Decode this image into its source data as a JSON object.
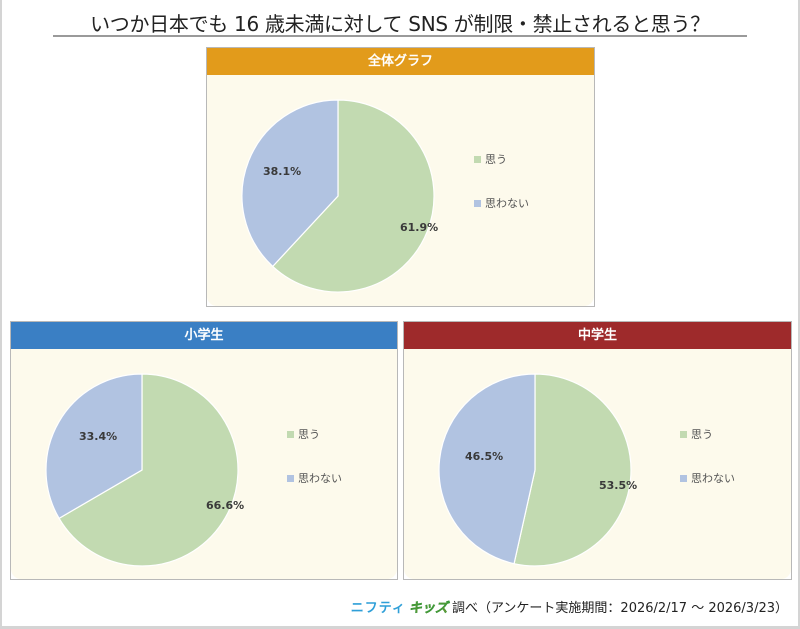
{
  "title": "いつか日本でも 16 歳未満に対して SNS が制限・禁止されると思う？",
  "colors": {
    "yes": "#c2dab1",
    "no": "#b1c3e1",
    "header_overall": "#e29b1b",
    "header_elementary": "#3a7fc4",
    "header_junior": "#9e2a2b",
    "panel_bg": "#fdfaec"
  },
  "legend": {
    "yes": "思う",
    "no": "思わない"
  },
  "panels": [
    {
      "id": "overall",
      "header": "全体グラフ",
      "yes_label": "61.9%",
      "no_label": "38.1%"
    },
    {
      "id": "elementary",
      "header": "小学生",
      "yes_label": "66.6%",
      "no_label": "33.4%"
    },
    {
      "id": "junior",
      "header": "中学生",
      "yes_label": "53.5%",
      "no_label": "46.5%"
    }
  ],
  "footer": {
    "brand_part1": "ニフティ",
    "brand_part2": "キッズ",
    "text": "調べ（アンケート実施期間：2026/2/17 ～ 2026/3/23）"
  },
  "chart_data": [
    {
      "type": "pie",
      "title": "全体グラフ",
      "categories": [
        "思う",
        "思わない"
      ],
      "values": [
        61.9,
        38.1
      ],
      "colors": [
        "#c2dab1",
        "#b1c3e1"
      ],
      "legend_position": "right"
    },
    {
      "type": "pie",
      "title": "小学生",
      "categories": [
        "思う",
        "思わない"
      ],
      "values": [
        66.6,
        33.4
      ],
      "colors": [
        "#c2dab1",
        "#b1c3e1"
      ],
      "legend_position": "right"
    },
    {
      "type": "pie",
      "title": "中学生",
      "categories": [
        "思う",
        "思わない"
      ],
      "values": [
        53.5,
        46.5
      ],
      "colors": [
        "#c2dab1",
        "#b1c3e1"
      ],
      "legend_position": "right"
    }
  ]
}
